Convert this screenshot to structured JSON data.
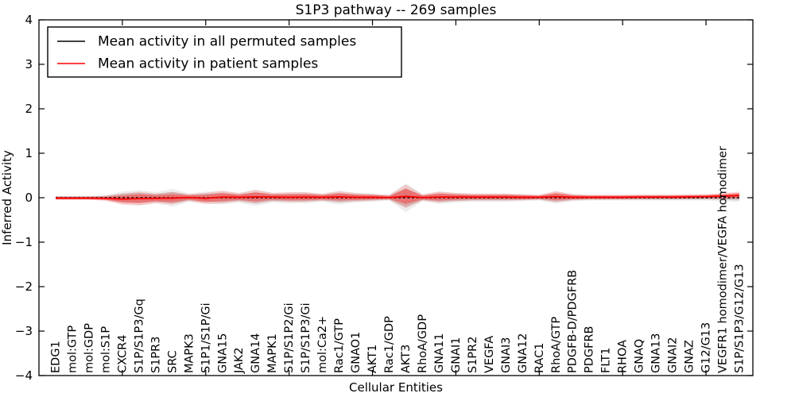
{
  "figure": {
    "background": "#ffffff"
  },
  "chart_data": {
    "type": "line",
    "title": "S1P3 pathway -- 269 samples",
    "xlabel": "Cellular Entities",
    "ylabel": "Inferred Activity",
    "ylim": [
      -4,
      4
    ],
    "yticks": [
      -4,
      -3,
      -2,
      -1,
      0,
      1,
      2,
      3,
      4
    ],
    "grid": false,
    "legend_position": "upper-left",
    "sample_count": 269,
    "categories": [
      "EDG1",
      "mol:GTP",
      "mol:GDP",
      "mol:S1P",
      "CXCR4",
      "S1P/S1P3/Gq",
      "S1PR3",
      "SRC",
      "MAPK3",
      "S1P1/S1P/Gi",
      "GNA15",
      "JAK2",
      "GNA14",
      "MAPK1",
      "S1P/S1P2/Gi",
      "S1P/S1P3/Gi",
      "mol:Ca2+",
      "Rac1/GTP",
      "GNAO1",
      "AKT1",
      "Rac1/GDP",
      "AKT3",
      "RhoA/GDP",
      "GNA11",
      "GNAI1",
      "S1PR2",
      "VEGFA",
      "GNAI3",
      "GNA12",
      "RAC1",
      "RhoA/GTP",
      "PDGFB-D/PDGFRB",
      "PDGFRB",
      "FLT1",
      "RHOA",
      "GNAQ",
      "GNA13",
      "GNAI2",
      "GNAZ",
      "G12/G13",
      "VEGFR1 homodimer/VEGFA homodimer",
      "S1P/S1P3/G12/G13"
    ],
    "series": [
      {
        "name": "Mean activity in all permuted samples",
        "color": "#000000",
        "style": "dashed",
        "values": [
          0,
          0,
          0,
          0,
          0,
          0,
          0,
          0,
          0,
          0,
          0,
          0,
          0,
          0,
          0,
          0,
          0,
          0,
          0,
          0,
          0,
          0,
          0,
          0,
          0,
          0,
          0,
          0,
          0,
          0,
          0,
          0,
          0,
          0,
          0,
          0,
          0,
          0,
          0,
          0,
          0,
          0
        ]
      },
      {
        "name": "Mean activity in patient samples",
        "color": "#ff0000",
        "style": "solid",
        "values": [
          -0.01,
          -0.01,
          -0.01,
          -0.015,
          -0.03,
          -0.02,
          -0.015,
          -0.01,
          0.005,
          -0.015,
          0.015,
          0.01,
          0.02,
          0.015,
          0.01,
          0.015,
          0.01,
          0.02,
          0.01,
          0.01,
          0.005,
          0.03,
          0.005,
          0.015,
          0.015,
          0.015,
          0.015,
          0.015,
          0.01,
          0.01,
          0.025,
          0.01,
          0.01,
          0.01,
          0.01,
          0.015,
          0.015,
          0.015,
          0.02,
          0.025,
          0.035,
          0.05
        ]
      }
    ],
    "bands": [
      {
        "name": "permuted-samples-spread",
        "series": 0,
        "color": "#8c8c8c",
        "half_widths": [
          0.03,
          0.03,
          0.03,
          0.04,
          0.09,
          0.11,
          0.08,
          0.13,
          0.06,
          0.09,
          0.1,
          0.07,
          0.12,
          0.07,
          0.08,
          0.08,
          0.06,
          0.1,
          0.07,
          0.06,
          0.04,
          0.21,
          0.05,
          0.09,
          0.07,
          0.06,
          0.06,
          0.06,
          0.05,
          0.04,
          0.09,
          0.05,
          0.04,
          0.04,
          0.04,
          0.04,
          0.04,
          0.04,
          0.04,
          0.04,
          0.05,
          0.06
        ]
      },
      {
        "name": "patient-samples-spread",
        "series": 1,
        "color": "#ff2222",
        "half_widths": [
          0.025,
          0.025,
          0.025,
          0.035,
          0.08,
          0.1,
          0.07,
          0.09,
          0.05,
          0.08,
          0.09,
          0.06,
          0.1,
          0.06,
          0.07,
          0.07,
          0.05,
          0.08,
          0.06,
          0.05,
          0.035,
          0.17,
          0.045,
          0.08,
          0.06,
          0.05,
          0.05,
          0.05,
          0.045,
          0.035,
          0.08,
          0.045,
          0.035,
          0.035,
          0.035,
          0.035,
          0.035,
          0.035,
          0.035,
          0.035,
          0.045,
          0.055
        ]
      }
    ],
    "colors": {
      "frame": "#000000",
      "background": "#ffffff"
    }
  }
}
